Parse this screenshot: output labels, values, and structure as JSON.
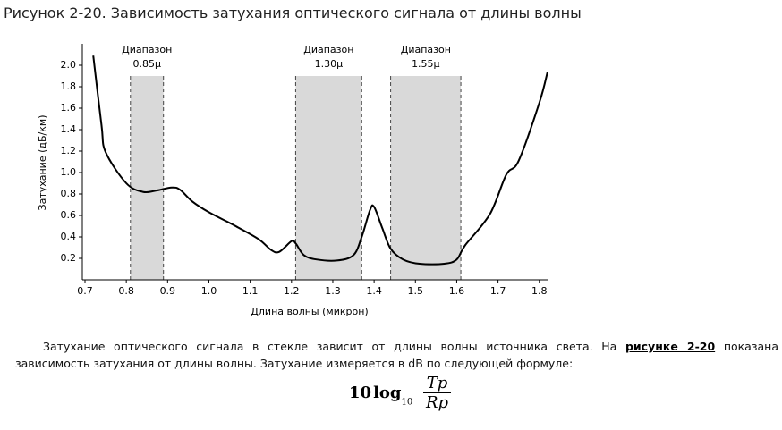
{
  "heading": "Рисунок 2-20. Зависимость затухания оптического сигнала от длины волны",
  "chart_data": {
    "type": "line",
    "y_label": "Затухание (дБ/км)",
    "x_label": "Длина волны (микрон)",
    "x": [
      0.72,
      0.74,
      0.75,
      0.8,
      0.84,
      0.87,
      0.91,
      0.93,
      0.96,
      1.0,
      1.06,
      1.12,
      1.15,
      1.17,
      1.2,
      1.21,
      1.23,
      1.26,
      1.31,
      1.35,
      1.37,
      1.39,
      1.4,
      1.42,
      1.44,
      1.47,
      1.51,
      1.57,
      1.6,
      1.62,
      1.68,
      1.72,
      1.75,
      1.8,
      1.82
    ],
    "values": [
      2.09,
      1.44,
      1.19,
      0.9,
      0.82,
      0.83,
      0.86,
      0.84,
      0.73,
      0.63,
      0.51,
      0.38,
      0.28,
      0.26,
      0.36,
      0.34,
      0.23,
      0.19,
      0.18,
      0.23,
      0.4,
      0.65,
      0.68,
      0.48,
      0.29,
      0.19,
      0.15,
      0.15,
      0.19,
      0.32,
      0.61,
      0.98,
      1.11,
      1.65,
      1.94
    ],
    "color": "#000000",
    "xlim": [
      0.7,
      1.82
    ],
    "ylim": [
      0,
      2.2
    ],
    "xticks": [
      0.7,
      0.8,
      0.9,
      {
        "value": 1,
        "label": "1.0"
      },
      1.1,
      1.2,
      1.3,
      1.4,
      1.5,
      1.6,
      1.7,
      1.8
    ],
    "yticks": [
      0.2,
      0.4,
      0.6,
      0.8,
      {
        "value": 1,
        "label": "1.0"
      },
      1.2,
      1.4,
      1.6,
      1.8,
      {
        "value": 2,
        "label": "2.0"
      }
    ],
    "bands": [
      {
        "start": 0.81,
        "end": 0.89,
        "label": "Диапазон",
        "sublabel": "0.85µ"
      },
      {
        "start": 1.21,
        "end": 1.37,
        "label": "Диапазон",
        "sublabel": "1.30µ"
      },
      {
        "start": 1.44,
        "end": 1.61,
        "label": "Диапазон",
        "sublabel": "1.55µ"
      }
    ],
    "band_color": "#d9d9d9"
  },
  "paragraph": {
    "before": "Затухание оптического сигнала в стекле зависит от длины волны источника света. На ",
    "link": "рисунке 2-20",
    "after": " показана зависимость затухания от длины волны. Затухание измеряется в dB по следующей формуле:"
  },
  "formula": {
    "coef": "10",
    "log": "log",
    "base": "10",
    "numerator": "Tp",
    "denominator": "Rp"
  }
}
